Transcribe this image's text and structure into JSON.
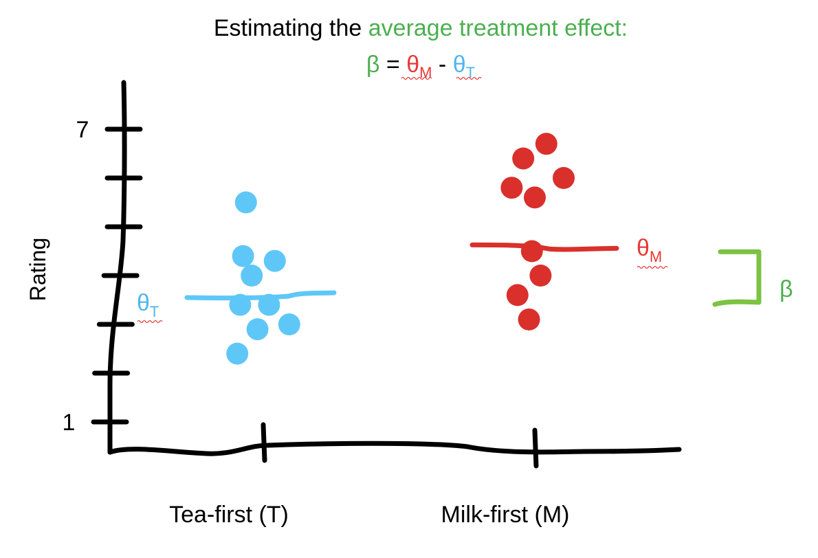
{
  "title": {
    "line1_prefix": "Estimating the ",
    "line1_highlight": "average treatment effect:",
    "formula_beta": "β",
    "formula_eq": " = ",
    "formula_theta_m": "θ",
    "formula_sub_m": "M",
    "formula_minus": " - ",
    "formula_theta_t": "θ",
    "formula_sub_t": "T"
  },
  "labels": {
    "theta_t": "θ",
    "theta_t_sub": "T",
    "theta_m": "θ",
    "theta_m_sub": "M",
    "beta": "β"
  },
  "colors": {
    "tea": "#5ec7f8",
    "milk": "#d9302c",
    "beta": "#7dc242",
    "axis": "#000000"
  },
  "chart_data": {
    "type": "scatter",
    "title": "Estimating the average treatment effect: β = θM - θT",
    "xlabel": "",
    "ylabel": "Rating",
    "ylim": [
      1,
      7
    ],
    "y_ticks": [
      1,
      2,
      3,
      4,
      5,
      6,
      7
    ],
    "y_tick_labels": [
      "1",
      "",
      "",
      "",
      "",
      "",
      "7"
    ],
    "categories": [
      "Tea-first (T)",
      "Milk-first (M)"
    ],
    "series": [
      {
        "points": [
          {
            "x": -0.06,
            "y": 5.5
          },
          {
            "x": -0.07,
            "y": 4.4
          },
          {
            "x": 0.04,
            "y": 4.3
          },
          {
            "x": -0.04,
            "y": 4.0
          },
          {
            "x": -0.08,
            "y": 3.4
          },
          {
            "x": 0.02,
            "y": 3.4
          },
          {
            "x": -0.02,
            "y": 2.9
          },
          {
            "x": 0.09,
            "y": 3.0
          },
          {
            "x": -0.09,
            "y": 2.4
          }
        ],
        "mean": 3.55
      },
      {
        "points": [
          {
            "x": 0.04,
            "y": 6.7
          },
          {
            "x": -0.04,
            "y": 6.4
          },
          {
            "x": 0.1,
            "y": 6.0
          },
          {
            "x": -0.08,
            "y": 5.8
          },
          {
            "x": 0.0,
            "y": 5.6
          },
          {
            "x": -0.01,
            "y": 4.5
          },
          {
            "x": 0.02,
            "y": 4.0
          },
          {
            "x": -0.06,
            "y": 3.6
          },
          {
            "x": -0.02,
            "y": 3.1
          }
        ],
        "mean": 4.6
      }
    ],
    "annotations": [
      "θT",
      "θM",
      "β"
    ]
  }
}
